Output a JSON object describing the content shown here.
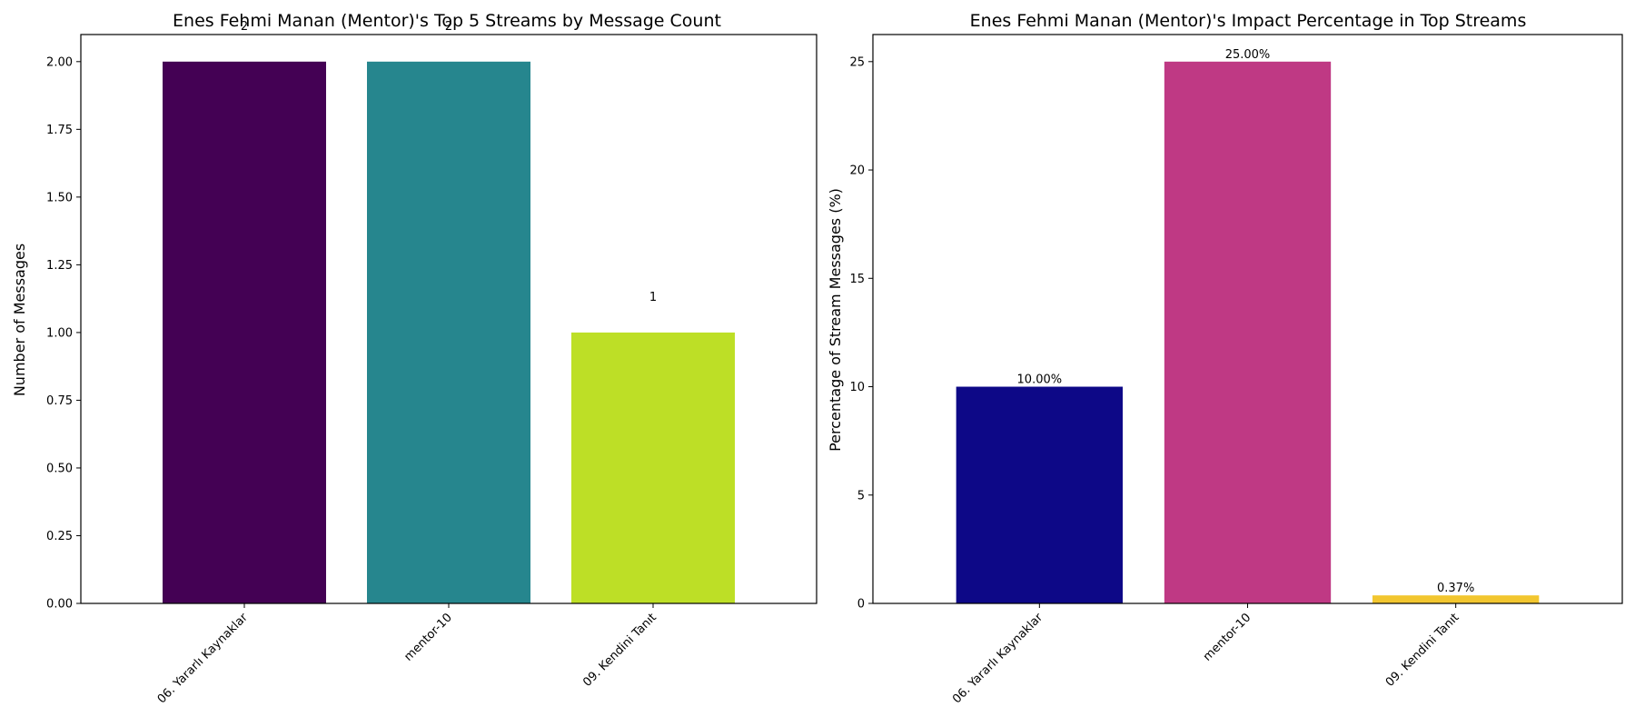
{
  "chart_data": [
    {
      "type": "bar",
      "title": "Enes Fehmi Manan (Mentor)'s Top 5 Streams by Message Count",
      "xlabel": "",
      "ylabel": "Number of Messages",
      "categories": [
        "06. Yararlı Kaynaklar",
        "mentor-10",
        "09. Kendini Tanıt"
      ],
      "values": [
        2,
        2,
        1
      ],
      "data_labels": [
        "2",
        "2",
        "1"
      ],
      "colors": [
        "#440154",
        "#26868e",
        "#bddf26"
      ],
      "ylim": [
        0,
        2.1
      ],
      "yticks": [
        0,
        0.25,
        0.5,
        0.75,
        1.0,
        1.25,
        1.5,
        1.75,
        2.0
      ],
      "ytick_labels": [
        "0.00",
        "0.25",
        "0.50",
        "0.75",
        "1.00",
        "1.25",
        "1.50",
        "1.75",
        "2.00"
      ],
      "grid": false,
      "legend": "none"
    },
    {
      "type": "bar",
      "title": "Enes Fehmi Manan (Mentor)'s Impact Percentage in Top Streams",
      "xlabel": "",
      "ylabel": "Percentage of Stream Messages (%)",
      "categories": [
        "06. Yararlı Kaynaklar",
        "mentor-10",
        "09. Kendini Tanıt"
      ],
      "values": [
        10.0,
        25.0,
        0.37
      ],
      "data_labels": [
        "10.00%",
        "25.00%",
        "0.37%"
      ],
      "colors": [
        "#0d0887",
        "#bf3984",
        "#f2c62f"
      ],
      "ylim": [
        0,
        26.25
      ],
      "yticks": [
        0,
        5,
        10,
        15,
        20,
        25
      ],
      "ytick_labels": [
        "0",
        "5",
        "10",
        "15",
        "20",
        "25"
      ],
      "grid": false,
      "legend": "none"
    }
  ]
}
